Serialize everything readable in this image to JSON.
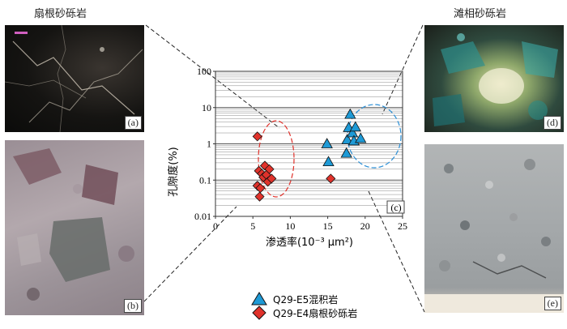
{
  "photo_titles": {
    "left": "扇根砂砾岩",
    "right": "滩相砂砾岩"
  },
  "panel_labels": {
    "a": "(a)",
    "b": "(b)",
    "c": "(c)",
    "d": "(d)",
    "e": "(e)"
  },
  "colors": {
    "triangle_fill": "#1e9ad6",
    "diamond_fill": "#e0322b",
    "ellipse_red": "#e0322b",
    "ellipse_blue": "#2b8fd6"
  },
  "chart_data": {
    "type": "scatter",
    "xlabel": "渗透率(10⁻³ μm²)",
    "ylabel": "孔隙度(%)",
    "y_scale": "log",
    "xlim": [
      0,
      25
    ],
    "ylim": [
      0.01,
      100
    ],
    "x_ticks": [
      "0",
      "5",
      "10",
      "15",
      "20",
      "25"
    ],
    "y_ticks": [
      "0.01",
      "0.1",
      "1",
      "10",
      "100"
    ],
    "legend_position": "below-chart",
    "series": [
      {
        "name": "Q29-E5混积岩",
        "marker": "triangle",
        "points": [
          [
            14.9,
            1.0
          ],
          [
            15.1,
            0.32
          ],
          [
            17.5,
            0.55
          ],
          [
            17.6,
            1.3
          ],
          [
            17.8,
            2.8
          ],
          [
            18.0,
            6.5
          ],
          [
            18.3,
            2.0
          ],
          [
            18.5,
            1.2
          ],
          [
            18.7,
            2.9
          ],
          [
            19.4,
            1.4
          ]
        ]
      },
      {
        "name": "Q29-E4扇根砂砾岩",
        "marker": "diamond",
        "points": [
          [
            5.6,
            1.6
          ],
          [
            5.6,
            0.07
          ],
          [
            5.8,
            0.18
          ],
          [
            5.9,
            0.035
          ],
          [
            6.0,
            0.06
          ],
          [
            6.2,
            0.15
          ],
          [
            6.4,
            0.12
          ],
          [
            6.6,
            0.25
          ],
          [
            6.8,
            0.14
          ],
          [
            7.0,
            0.09
          ],
          [
            7.2,
            0.2
          ],
          [
            7.5,
            0.11
          ],
          [
            15.4,
            0.11
          ]
        ]
      }
    ]
  }
}
